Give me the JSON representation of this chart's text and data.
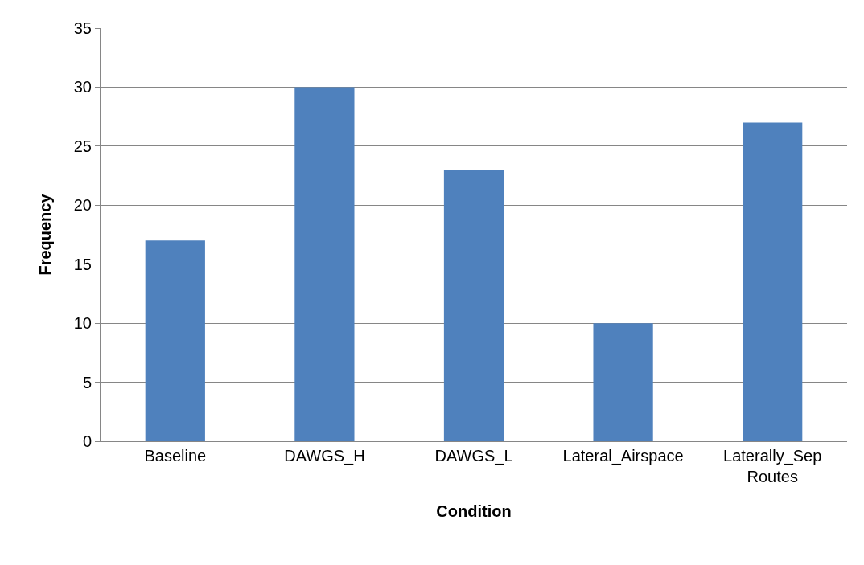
{
  "chart_data": {
    "type": "bar",
    "xlabel": "Condition",
    "ylabel": "Frequency",
    "categories": [
      "Baseline",
      "DAWGS_H",
      "DAWGS_L",
      "Lateral_Airspace",
      "Laterally_Sep Routes"
    ],
    "values": [
      17,
      30,
      23,
      10,
      27
    ],
    "color": "#4f81bd",
    "ylim": [
      0,
      35
    ],
    "yticks": [
      0,
      5,
      10,
      15,
      20,
      25,
      30,
      35
    ],
    "grid": "y"
  }
}
